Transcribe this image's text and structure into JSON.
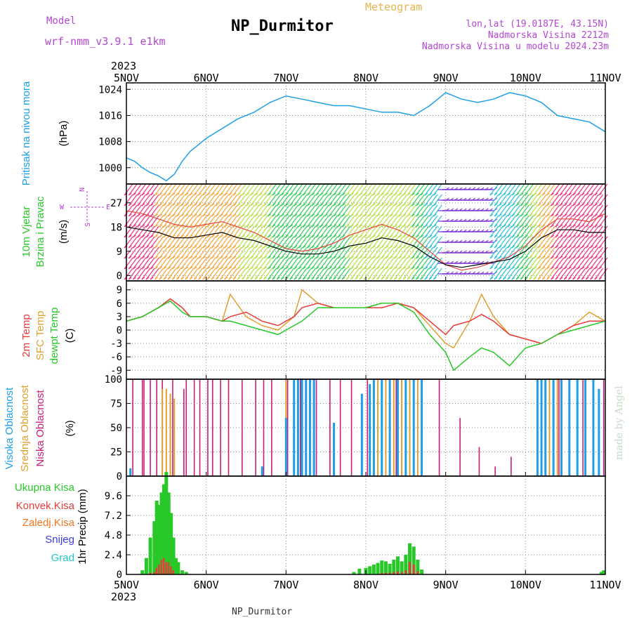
{
  "header": {
    "model_label": "Model",
    "model_name": "wrf-nmm_v3.9.1 e1km",
    "station": "NP_Durmitor",
    "product": "Meteogram",
    "coords": "lon,lat (19.0187E, 43.15N)",
    "elevation": "Nadmorska Visina 2212m",
    "model_elevation": "Nadmorska Visina u modelu 2024.23m",
    "year_top": "2023",
    "year_bottom": "2023",
    "footer_station": "NP_Durmitor",
    "credit": "made by Angel"
  },
  "colors": {
    "pressure": "#1ea0e6",
    "wind_speed": "#000000",
    "gust": "#e8463c",
    "temp2m": "#e83c3c",
    "sfc_temp": "#e0a030",
    "dewpt": "#28c828",
    "high_cloud": "#1e9ee8",
    "mid_cloud": "#e0a030",
    "low_cloud": "#c81e78",
    "total_precip": "#28c828",
    "conv_precip": "#e83c3c",
    "frozen_precip": "#f07820",
    "snow": "#3c3cdc",
    "hail": "#20c8c8"
  },
  "chart_data": [
    {
      "type": "line",
      "name": "pressure",
      "ylabel_lines": [
        "Pritisak na nivou mora",
        "(hPa)"
      ],
      "x_days": [
        0,
        0.1,
        0.2,
        0.3,
        0.4,
        0.5,
        0.6,
        0.7,
        0.8,
        0.9,
        1.0,
        1.2,
        1.4,
        1.6,
        1.8,
        2.0,
        2.2,
        2.4,
        2.6,
        2.8,
        3.0,
        3.2,
        3.4,
        3.6,
        3.8,
        3.9,
        4.0,
        4.2,
        4.4,
        4.6,
        4.8,
        5.0,
        5.2,
        5.4,
        5.6,
        5.8,
        6.0
      ],
      "values": [
        1003,
        1002,
        1000,
        998.5,
        997.5,
        996,
        998,
        1002,
        1005,
        1007,
        1009,
        1012,
        1015,
        1017,
        1020,
        1022,
        1021,
        1020,
        1019,
        1019,
        1018,
        1017,
        1017,
        1016,
        1019,
        1021,
        1023,
        1021,
        1020,
        1021,
        1023,
        1022,
        1020,
        1016,
        1015,
        1014,
        1011
      ],
      "ylim": [
        995,
        1026
      ],
      "yticks": [
        1000,
        1008,
        1016,
        1024
      ]
    },
    {
      "type": "line",
      "name": "wind",
      "ylabel_lines": [
        "10m Vjetar",
        "Brzina i Pravac",
        "(m/s)"
      ],
      "compass": {
        "north": "N",
        "south": "S",
        "east": "E",
        "west": "W"
      },
      "x_days": [
        0,
        0.2,
        0.4,
        0.6,
        0.8,
        1.0,
        1.2,
        1.4,
        1.6,
        1.8,
        2.0,
        2.2,
        2.4,
        2.6,
        2.8,
        3.0,
        3.2,
        3.4,
        3.6,
        3.8,
        4.0,
        4.2,
        4.4,
        4.6,
        4.8,
        5.0,
        5.2,
        5.4,
        5.6,
        5.8,
        6.0
      ],
      "speed": [
        18,
        17,
        16,
        14,
        14,
        15,
        16,
        14,
        13,
        11,
        9,
        8,
        8,
        9,
        11,
        12,
        14,
        13,
        11,
        7,
        4,
        3,
        4,
        5,
        6,
        9,
        14,
        17,
        17,
        16,
        16
      ],
      "gust": [
        24,
        23,
        21,
        19,
        18,
        19,
        20,
        18,
        16,
        13,
        10,
        9,
        10,
        12,
        15,
        17,
        19,
        17,
        14,
        9,
        4,
        2,
        3,
        5,
        7,
        11,
        17,
        21,
        21,
        20,
        23
      ],
      "ylim": [
        -2,
        34
      ],
      "yticks": [
        0,
        9,
        18,
        27
      ]
    },
    {
      "type": "line",
      "name": "temperature",
      "ylabel_lines": [
        "2m Temp",
        "SFC Temp",
        "dewpt Temp",
        "(C)"
      ],
      "x_days": [
        0,
        0.2,
        0.4,
        0.55,
        0.7,
        0.8,
        1.0,
        1.2,
        1.3,
        1.5,
        1.7,
        1.9,
        2.1,
        2.2,
        2.4,
        2.6,
        2.8,
        3.0,
        3.2,
        3.4,
        3.6,
        3.8,
        4.0,
        4.1,
        4.3,
        4.45,
        4.6,
        4.8,
        5.0,
        5.2,
        5.4,
        5.6,
        5.8,
        6.0
      ],
      "temp2m": [
        2,
        3,
        5,
        7,
        5,
        3,
        3,
        2,
        3,
        4,
        2,
        1,
        3,
        5,
        6,
        5,
        5,
        5,
        5,
        6,
        5,
        2,
        -1,
        1,
        2,
        3.5,
        2,
        -1,
        -2,
        -3,
        -1,
        1,
        2,
        2
      ],
      "sfc": [
        2,
        3,
        5,
        7,
        5,
        3,
        3,
        2,
        8,
        3,
        1,
        0,
        3,
        9,
        6,
        5,
        5,
        5,
        6,
        6,
        5,
        1,
        -3,
        -4,
        2,
        8,
        3,
        -1,
        -2,
        -3,
        -1,
        1,
        4,
        2
      ],
      "dewpt": [
        2,
        3,
        5,
        6.5,
        4,
        3,
        3,
        2,
        2,
        1,
        0,
        -1,
        1,
        2,
        5,
        5,
        5,
        5,
        6,
        6,
        4,
        -1,
        -5,
        -9,
        -6,
        -4,
        -5,
        -8,
        -4,
        -3,
        -1,
        0,
        1,
        2
      ],
      "ylim": [
        -11,
        11
      ],
      "yticks": [
        -9,
        -6,
        -3,
        0,
        3,
        6,
        9
      ]
    },
    {
      "type": "bar",
      "name": "cloud",
      "ylabel_lines": [
        "Visoka Oblacnost",
        "Srednja Oblacnost",
        "Niska Oblacnost",
        "(%)"
      ],
      "low_x": [
        0.08,
        0.2,
        0.22,
        0.3,
        0.38,
        0.45,
        0.58,
        0.72,
        0.75,
        0.85,
        0.92,
        1.02,
        1.08,
        1.18,
        1.28,
        1.45,
        1.62,
        1.72,
        1.82,
        2.02,
        2.18,
        2.38,
        2.55,
        2.68,
        2.82,
        3.02,
        3.2,
        3.38,
        3.45,
        3.55,
        3.92,
        4.18,
        4.42,
        4.62,
        4.82,
        5.2,
        5.42,
        5.72,
        5.98
      ],
      "low_v": [
        100,
        100,
        100,
        100,
        100,
        100,
        100,
        90,
        100,
        100,
        100,
        100,
        100,
        100,
        100,
        100,
        100,
        100,
        100,
        100,
        100,
        100,
        100,
        100,
        100,
        100,
        100,
        100,
        100,
        100,
        100,
        60,
        30,
        10,
        20,
        100,
        100,
        100,
        100
      ],
      "mid_x": [
        0.45,
        0.5,
        0.55,
        0.6,
        2.0,
        3.1,
        3.15,
        3.2,
        3.25,
        3.3,
        3.35,
        3.4,
        3.45,
        3.5,
        3.55,
        3.6,
        3.65,
        3.7,
        5.15,
        5.2,
        5.3,
        5.4
      ],
      "mid_v": [
        90,
        90,
        85,
        80,
        100,
        100,
        100,
        100,
        100,
        100,
        100,
        100,
        100,
        100,
        100,
        100,
        100,
        100,
        100,
        100,
        100,
        100
      ],
      "high_x": [
        0.05,
        1.7,
        2.0,
        2.1,
        2.15,
        2.2,
        2.25,
        2.3,
        2.35,
        2.6,
        2.95,
        3.05,
        3.1,
        3.2,
        3.3,
        3.4,
        3.5,
        3.6,
        3.7,
        5.15,
        5.2,
        5.25,
        5.35,
        5.45,
        5.55,
        5.65,
        5.75,
        5.85,
        5.92
      ],
      "high_v": [
        8,
        10,
        60,
        100,
        100,
        100,
        100,
        100,
        100,
        55,
        85,
        95,
        100,
        100,
        100,
        100,
        100,
        100,
        100,
        100,
        100,
        100,
        100,
        100,
        100,
        100,
        100,
        100,
        90
      ],
      "ylim": [
        0,
        100
      ],
      "yticks": [
        0,
        25,
        50,
        75,
        100
      ]
    },
    {
      "type": "bar",
      "name": "precip",
      "ylabel_lines": [
        "1hr Precip (mm)"
      ],
      "legend": [
        "Ukupna Kisa",
        "Konvek.Kisa",
        "Zaledj.Kisa",
        "Snijeg",
        "Grad"
      ],
      "x_days": [
        0.2,
        0.25,
        0.3,
        0.35,
        0.38,
        0.41,
        0.44,
        0.47,
        0.5,
        0.53,
        0.56,
        0.59,
        0.62,
        0.65,
        0.7,
        0.75,
        2.85,
        2.92,
        3.0,
        3.05,
        3.1,
        3.15,
        3.2,
        3.25,
        3.3,
        3.35,
        3.4,
        3.45,
        3.5,
        3.55,
        3.6,
        3.65,
        3.7,
        5.95,
        5.98
      ],
      "total": [
        0.5,
        2.0,
        4.5,
        6.5,
        9.0,
        8.5,
        10.0,
        11.0,
        12.5,
        10.0,
        7.5,
        4.5,
        2.0,
        1.5,
        0.5,
        0.3,
        0.3,
        0.7,
        0.8,
        1.0,
        1.2,
        1.4,
        1.7,
        1.6,
        1.3,
        1.8,
        2.2,
        1.6,
        2.4,
        3.8,
        3.4,
        1.8,
        0.6,
        0.3,
        0.5
      ],
      "convective": [
        0,
        0,
        0.2,
        0.3,
        0.8,
        1.2,
        1.8,
        2.0,
        1.5,
        1.5,
        1.0,
        0.5,
        0,
        0,
        0,
        0,
        0,
        0,
        0,
        0,
        0,
        0,
        0.2,
        0.2,
        0.2,
        0.3,
        0.4,
        0.3,
        0.5,
        1.5,
        1.2,
        0.4,
        0,
        0,
        0
      ],
      "ylim": [
        0,
        12
      ],
      "yticks": [
        0,
        2.4,
        4.8,
        7.2,
        9.6
      ]
    }
  ],
  "x_axis": {
    "tick_labels": [
      "5NOV",
      "6NOV",
      "7NOV",
      "8NOV",
      "9NOV",
      "10NOV",
      "11NOV"
    ],
    "x_range_days": [
      0,
      6
    ]
  }
}
